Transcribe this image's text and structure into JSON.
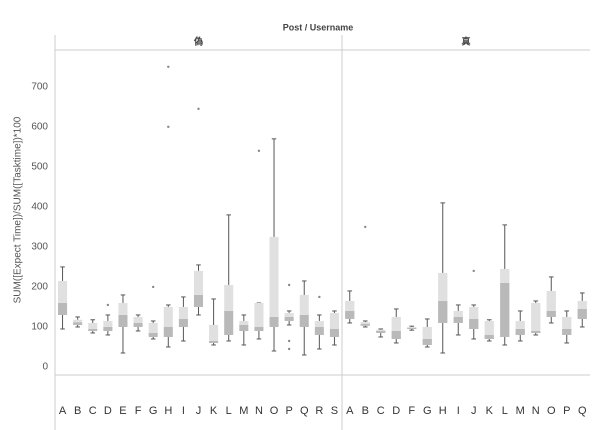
{
  "chart_data": {
    "type": "box",
    "title": "Post / Username",
    "y_label": "SUM([Expect Time])/SUM([Tasktime])*100",
    "ylim": [
      -20,
      792
    ],
    "yticks": [
      0,
      100,
      200,
      300,
      400,
      500,
      600,
      700
    ],
    "grid": false,
    "color_lower": "#b9b9b9",
    "color_upper": "#e0e0e0",
    "whisker_color": "#555555",
    "outlier_color": "#888888",
    "panels": [
      {
        "name": "偽",
        "categories": [
          "A",
          "B",
          "C",
          "D",
          "E",
          "F",
          "G",
          "H",
          "I",
          "J",
          "K",
          "L",
          "M",
          "N",
          "O",
          "P",
          "Q",
          "R",
          "S"
        ],
        "boxes": [
          {
            "min": 95,
            "q1": 130,
            "median": 160,
            "q3": 215,
            "max": 250,
            "outliers": []
          },
          {
            "min": 100,
            "q1": 105,
            "median": 112,
            "q3": 118,
            "max": 125,
            "outliers": []
          },
          {
            "min": 85,
            "q1": 90,
            "median": 95,
            "q3": 110,
            "max": 118,
            "outliers": []
          },
          {
            "min": 80,
            "q1": 90,
            "median": 100,
            "q3": 115,
            "max": 130,
            "outliers": [
              155
            ]
          },
          {
            "min": 35,
            "q1": 100,
            "median": 130,
            "q3": 160,
            "max": 180,
            "outliers": []
          },
          {
            "min": 90,
            "q1": 100,
            "median": 110,
            "q3": 125,
            "max": 130,
            "outliers": []
          },
          {
            "min": 70,
            "q1": 75,
            "median": 85,
            "q3": 110,
            "max": 115,
            "outliers": [
              200
            ]
          },
          {
            "min": 50,
            "q1": 75,
            "median": 100,
            "q3": 150,
            "max": 155,
            "outliers": [
              600,
              750
            ]
          },
          {
            "min": 65,
            "q1": 100,
            "median": 120,
            "q3": 150,
            "max": 175,
            "outliers": []
          },
          {
            "min": 130,
            "q1": 150,
            "median": 180,
            "q3": 240,
            "max": 255,
            "outliers": [
              645
            ]
          },
          {
            "min": 55,
            "q1": 60,
            "median": 65,
            "q3": 105,
            "max": 170,
            "outliers": []
          },
          {
            "min": 65,
            "q1": 80,
            "median": 140,
            "q3": 205,
            "max": 380,
            "outliers": []
          },
          {
            "min": 55,
            "q1": 90,
            "median": 105,
            "q3": 115,
            "max": 130,
            "outliers": []
          },
          {
            "min": 70,
            "q1": 90,
            "median": 100,
            "q3": 160,
            "max": 160,
            "outliers": [
              540
            ]
          },
          {
            "min": 40,
            "q1": 100,
            "median": 125,
            "q3": 325,
            "max": 570,
            "outliers": []
          },
          {
            "min": 105,
            "q1": 115,
            "median": 125,
            "q3": 135,
            "max": 140,
            "outliers": [
              205,
              65,
              45
            ]
          },
          {
            "min": 30,
            "q1": 100,
            "median": 130,
            "q3": 180,
            "max": 215,
            "outliers": []
          },
          {
            "min": 45,
            "q1": 80,
            "median": 100,
            "q3": 115,
            "max": 130,
            "outliers": [
              175
            ]
          },
          {
            "min": 55,
            "q1": 75,
            "median": 95,
            "q3": 135,
            "max": 140,
            "outliers": []
          }
        ]
      },
      {
        "name": "真",
        "categories": [
          "A",
          "B",
          "C",
          "D",
          "F",
          "G",
          "H",
          "I",
          "J",
          "K",
          "L",
          "M",
          "N",
          "O",
          "P",
          "Q"
        ],
        "boxes": [
          {
            "min": 110,
            "q1": 120,
            "median": 140,
            "q3": 165,
            "max": 190,
            "outliers": []
          },
          {
            "min": 100,
            "q1": 103,
            "median": 108,
            "q3": 112,
            "max": 115,
            "outliers": [
              350
            ]
          },
          {
            "min": 75,
            "q1": 85,
            "median": 90,
            "q3": 93,
            "max": 95,
            "outliers": []
          },
          {
            "min": 60,
            "q1": 70,
            "median": 90,
            "q3": 125,
            "max": 145,
            "outliers": []
          },
          {
            "min": 92,
            "q1": 95,
            "median": 98,
            "q3": 100,
            "max": 102,
            "outliers": []
          },
          {
            "min": 50,
            "q1": 55,
            "median": 70,
            "q3": 100,
            "max": 120,
            "outliers": []
          },
          {
            "min": 35,
            "q1": 110,
            "median": 165,
            "q3": 235,
            "max": 410,
            "outliers": []
          },
          {
            "min": 80,
            "q1": 110,
            "median": 125,
            "q3": 140,
            "max": 155,
            "outliers": []
          },
          {
            "min": 70,
            "q1": 95,
            "median": 120,
            "q3": 150,
            "max": 155,
            "outliers": [
              240
            ]
          },
          {
            "min": 65,
            "q1": 70,
            "median": 80,
            "q3": 115,
            "max": 118,
            "outliers": []
          },
          {
            "min": 55,
            "q1": 75,
            "median": 210,
            "q3": 245,
            "max": 355,
            "outliers": []
          },
          {
            "min": 65,
            "q1": 80,
            "median": 95,
            "q3": 115,
            "max": 140,
            "outliers": []
          },
          {
            "min": 80,
            "q1": 85,
            "median": 90,
            "q3": 160,
            "max": 165,
            "outliers": []
          },
          {
            "min": 110,
            "q1": 125,
            "median": 140,
            "q3": 190,
            "max": 225,
            "outliers": []
          },
          {
            "min": 60,
            "q1": 80,
            "median": 95,
            "q3": 125,
            "max": 140,
            "outliers": []
          },
          {
            "min": 100,
            "q1": 120,
            "median": 145,
            "q3": 165,
            "max": 185,
            "outliers": []
          }
        ]
      }
    ]
  }
}
